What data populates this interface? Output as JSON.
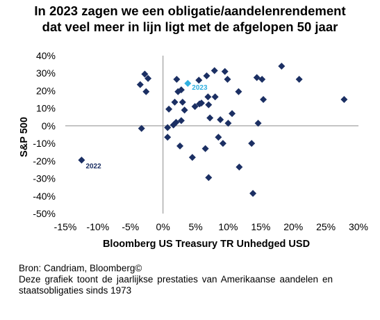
{
  "title_line1": "In 2023 zagen we een obligatie/aandelenrendement",
  "title_line2": "dat veel meer in lijn ligt met de afgelopen 50 jaar",
  "source": "Bron: Candriam, Bloomberg©",
  "description": "Deze grafiek toont de jaarlijkse prestaties van Amerikaanse aandelen en staatsobligaties sinds 1973",
  "colors": {
    "points": "#1b2f63",
    "highlight": "#31b0e0",
    "axis": "#8c8c8c"
  },
  "chart_data": {
    "type": "scatter",
    "xlabel": "Bloomberg US Treasury TR Unhedged USD",
    "ylabel": "S&P 500",
    "xlim": [
      -15,
      30
    ],
    "ylim": [
      -50,
      40
    ],
    "x_ticks": [
      "-15%",
      "-10%",
      "-5%",
      "0%",
      "5%",
      "10%",
      "15%",
      "20%",
      "25%",
      "30%"
    ],
    "y_ticks": [
      "40%",
      "30%",
      "20%",
      "10%",
      "0%",
      "-10%",
      "-20%",
      "-30%",
      "-40%",
      "-50%"
    ],
    "grid": false,
    "points": [
      {
        "x": -12.5,
        "y": -19.5
      },
      {
        "x": -3.5,
        "y": 23.5
      },
      {
        "x": -3.3,
        "y": -1.5
      },
      {
        "x": -2.8,
        "y": 29.5
      },
      {
        "x": -2.6,
        "y": 19.5
      },
      {
        "x": -2.3,
        "y": 27.0
      },
      {
        "x": 0.7,
        "y": -6.5
      },
      {
        "x": 0.7,
        "y": -1.0
      },
      {
        "x": 0.9,
        "y": 9.5
      },
      {
        "x": 1.6,
        "y": 0.5
      },
      {
        "x": 1.8,
        "y": 13.5
      },
      {
        "x": 2.0,
        "y": 2.0
      },
      {
        "x": 2.1,
        "y": 26.5
      },
      {
        "x": 2.3,
        "y": 19.5
      },
      {
        "x": 2.6,
        "y": -11.5
      },
      {
        "x": 2.8,
        "y": 20.5
      },
      {
        "x": 2.8,
        "y": 3.0
      },
      {
        "x": 3.0,
        "y": 13.5
      },
      {
        "x": 3.3,
        "y": 9.0
      },
      {
        "x": 3.8,
        "y": 24.2,
        "highlight": true
      },
      {
        "x": 4.5,
        "y": -18.0
      },
      {
        "x": 4.9,
        "y": 11.0
      },
      {
        "x": 5.5,
        "y": 26.0
      },
      {
        "x": 5.6,
        "y": 12.5
      },
      {
        "x": 5.9,
        "y": 13.0
      },
      {
        "x": 6.5,
        "y": -13.0
      },
      {
        "x": 6.7,
        "y": 28.5
      },
      {
        "x": 6.9,
        "y": 16.5
      },
      {
        "x": 7.0,
        "y": 12.0
      },
      {
        "x": 7.0,
        "y": -29.5
      },
      {
        "x": 7.2,
        "y": 4.5
      },
      {
        "x": 7.9,
        "y": 31.5
      },
      {
        "x": 8.0,
        "y": 16.5
      },
      {
        "x": 8.5,
        "y": -6.5
      },
      {
        "x": 8.8,
        "y": 3.5
      },
      {
        "x": 9.2,
        "y": -10.0
      },
      {
        "x": 9.5,
        "y": 31.0
      },
      {
        "x": 9.9,
        "y": 26.5
      },
      {
        "x": 10.0,
        "y": 1.5
      },
      {
        "x": 10.6,
        "y": 7.0
      },
      {
        "x": 11.6,
        "y": 19.5
      },
      {
        "x": 11.7,
        "y": -23.5
      },
      {
        "x": 13.6,
        "y": -10.0
      },
      {
        "x": 13.8,
        "y": -38.5
      },
      {
        "x": 14.4,
        "y": 27.5
      },
      {
        "x": 14.6,
        "y": 1.5
      },
      {
        "x": 15.2,
        "y": 26.5
      },
      {
        "x": 15.4,
        "y": 15.0
      },
      {
        "x": 18.2,
        "y": 34.0
      },
      {
        "x": 20.9,
        "y": 26.5
      },
      {
        "x": 27.8,
        "y": 15.0
      }
    ],
    "annotations": [
      {
        "text": "2022",
        "x": -12.5,
        "y": -19.5
      },
      {
        "text": "2023",
        "x": 3.8,
        "y": 24.2
      }
    ]
  }
}
